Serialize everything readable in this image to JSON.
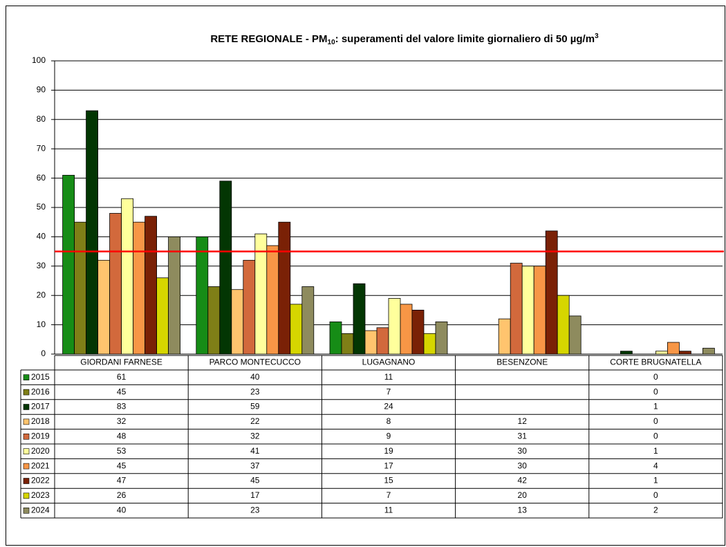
{
  "chart_data": {
    "type": "bar",
    "title": [
      "RETE REGIONALE  - PM",
      "10",
      ":  superamenti del valore limite giornaliero di 50 µg/m",
      "3"
    ],
    "categories": [
      "GIORDANI FARNESE",
      "PARCO MONTECUCCO",
      "LUGAGNANO",
      "BESENZONE",
      "CORTE BRUGNATELLA"
    ],
    "series": [
      {
        "name": "2015",
        "color": "#168c16",
        "values": [
          61,
          40,
          11,
          null,
          0
        ]
      },
      {
        "name": "2016",
        "color": "#7f7f17",
        "values": [
          45,
          23,
          7,
          null,
          0
        ]
      },
      {
        "name": "2017",
        "color": "#033603",
        "values": [
          83,
          59,
          24,
          null,
          1
        ]
      },
      {
        "name": "2018",
        "color": "#ffc46e",
        "values": [
          32,
          22,
          8,
          12,
          0
        ]
      },
      {
        "name": "2019",
        "color": "#d2693c",
        "values": [
          48,
          32,
          9,
          31,
          0
        ]
      },
      {
        "name": "2020",
        "color": "#ffff9c",
        "values": [
          53,
          41,
          19,
          30,
          1
        ]
      },
      {
        "name": "2021",
        "color": "#f79646",
        "values": [
          45,
          37,
          17,
          30,
          4
        ]
      },
      {
        "name": "2022",
        "color": "#7a2106",
        "values": [
          47,
          45,
          15,
          42,
          1
        ]
      },
      {
        "name": "2023",
        "color": "#d6d600",
        "values": [
          26,
          17,
          7,
          20,
          0
        ]
      },
      {
        "name": "2024",
        "color": "#8e8b5e",
        "values": [
          40,
          23,
          11,
          13,
          2
        ]
      }
    ],
    "reference_line": {
      "value": 35,
      "color": "#ff0000"
    },
    "ylim": [
      0,
      100
    ],
    "yticks": [
      0,
      10,
      20,
      30,
      40,
      50,
      60,
      70,
      80,
      90,
      100
    ],
    "grid": true
  }
}
